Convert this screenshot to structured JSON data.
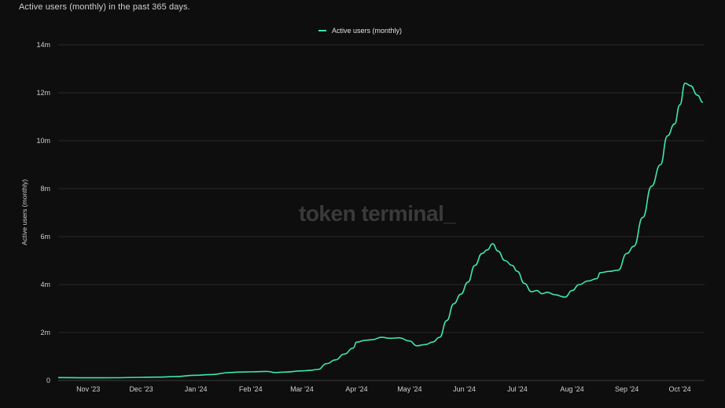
{
  "subtitle": "Active users (monthly) in the past 365 days.",
  "watermark": "token terminal_",
  "colors": {
    "background": "#0e0e0e",
    "line": "#3ee6a8",
    "grid": "#2a2a2a",
    "axis_text": "#cfcfcf"
  },
  "chart_data": {
    "type": "line",
    "title": "",
    "subtitle": "Active users (monthly) in the past 365 days.",
    "xlabel": "",
    "ylabel": "Active users (monthly)",
    "legend": {
      "position": "top-center",
      "entries": [
        "Active users (monthly)"
      ]
    },
    "grid": {
      "horizontal": true,
      "vertical": false
    },
    "ylim": [
      0,
      14000000
    ],
    "y_ticks": [
      0,
      2000000,
      4000000,
      6000000,
      8000000,
      10000000,
      12000000,
      14000000
    ],
    "y_tick_labels": [
      "0",
      "2m",
      "4m",
      "6m",
      "8m",
      "10m",
      "12m",
      "14m"
    ],
    "xlim": [
      "2023-10-15",
      "2024-10-15"
    ],
    "x_ticks": [
      "2023-11-01",
      "2023-12-01",
      "2024-01-01",
      "2024-02-01",
      "2024-03-01",
      "2024-04-01",
      "2024-05-01",
      "2024-06-01",
      "2024-07-01",
      "2024-08-01",
      "2024-09-01",
      "2024-10-01"
    ],
    "x_tick_labels": [
      "Nov '23",
      "Dec '23",
      "Jan '24",
      "Feb '24",
      "Mar '24",
      "Apr '24",
      "May '24",
      "Jun '24",
      "Jul '24",
      "Aug '24",
      "Sep '24",
      "Oct '24"
    ],
    "series": [
      {
        "name": "Active users (monthly)",
        "color": "#3ee6a8",
        "points": [
          [
            "2023-10-15",
            120000
          ],
          [
            "2023-11-01",
            110000
          ],
          [
            "2023-11-15",
            115000
          ],
          [
            "2023-12-01",
            130000
          ],
          [
            "2023-12-10",
            140000
          ],
          [
            "2023-12-20",
            160000
          ],
          [
            "2024-01-01",
            220000
          ],
          [
            "2024-01-10",
            250000
          ],
          [
            "2024-01-20",
            330000
          ],
          [
            "2024-01-25",
            350000
          ],
          [
            "2024-02-01",
            360000
          ],
          [
            "2024-02-10",
            380000
          ],
          [
            "2024-02-15",
            330000
          ],
          [
            "2024-02-20",
            350000
          ],
          [
            "2024-03-01",
            400000
          ],
          [
            "2024-03-05",
            420000
          ],
          [
            "2024-03-10",
            460000
          ],
          [
            "2024-03-15",
            700000
          ],
          [
            "2024-03-20",
            860000
          ],
          [
            "2024-03-25",
            1100000
          ],
          [
            "2024-03-30",
            1350000
          ],
          [
            "2024-04-01",
            1600000
          ],
          [
            "2024-04-06",
            1680000
          ],
          [
            "2024-04-10",
            1700000
          ],
          [
            "2024-04-15",
            1800000
          ],
          [
            "2024-04-20",
            1760000
          ],
          [
            "2024-04-25",
            1780000
          ],
          [
            "2024-05-01",
            1650000
          ],
          [
            "2024-05-05",
            1450000
          ],
          [
            "2024-05-10",
            1500000
          ],
          [
            "2024-05-14",
            1600000
          ],
          [
            "2024-05-18",
            1800000
          ],
          [
            "2024-05-22",
            2500000
          ],
          [
            "2024-05-26",
            3200000
          ],
          [
            "2024-05-30",
            3600000
          ],
          [
            "2024-06-03",
            4100000
          ],
          [
            "2024-06-07",
            4800000
          ],
          [
            "2024-06-11",
            5300000
          ],
          [
            "2024-06-14",
            5450000
          ],
          [
            "2024-06-17",
            5700000
          ],
          [
            "2024-06-20",
            5400000
          ],
          [
            "2024-06-24",
            5000000
          ],
          [
            "2024-06-28",
            4800000
          ],
          [
            "2024-07-01",
            4550000
          ],
          [
            "2024-07-05",
            4050000
          ],
          [
            "2024-07-09",
            3700000
          ],
          [
            "2024-07-12",
            3750000
          ],
          [
            "2024-07-15",
            3620000
          ],
          [
            "2024-07-18",
            3680000
          ],
          [
            "2024-07-22",
            3580000
          ],
          [
            "2024-07-28",
            3480000
          ],
          [
            "2024-08-01",
            3750000
          ],
          [
            "2024-08-05",
            4000000
          ],
          [
            "2024-08-10",
            4150000
          ],
          [
            "2024-08-15",
            4250000
          ],
          [
            "2024-08-17",
            4500000
          ],
          [
            "2024-08-22",
            4550000
          ],
          [
            "2024-08-27",
            4600000
          ],
          [
            "2024-09-01",
            5300000
          ],
          [
            "2024-09-05",
            5600000
          ],
          [
            "2024-09-10",
            6800000
          ],
          [
            "2024-09-15",
            8100000
          ],
          [
            "2024-09-20",
            9000000
          ],
          [
            "2024-09-24",
            10200000
          ],
          [
            "2024-09-28",
            10700000
          ],
          [
            "2024-10-01",
            11500000
          ],
          [
            "2024-10-04",
            12400000
          ],
          [
            "2024-10-07",
            12300000
          ],
          [
            "2024-10-11",
            11900000
          ],
          [
            "2024-10-14",
            11600000
          ]
        ]
      }
    ]
  }
}
